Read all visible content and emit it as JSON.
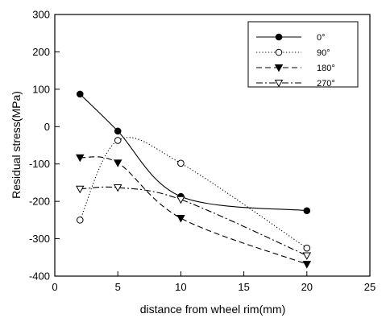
{
  "chart_data": {
    "type": "line",
    "title": "",
    "xlabel": "distance from wheel rim(mm)",
    "ylabel": "Residual stress(MPa)",
    "xlim": [
      0,
      25
    ],
    "ylim": [
      -400,
      300
    ],
    "xticks": [
      0,
      5,
      10,
      15,
      20,
      25
    ],
    "yticks": [
      -400,
      -300,
      -200,
      -100,
      0,
      100,
      200,
      300
    ],
    "xtick_labels": [
      "0",
      "5",
      "10",
      "15",
      "20",
      "25"
    ],
    "ytick_labels": [
      "-400",
      "-300",
      "-200",
      "-100",
      "0",
      "100",
      "200",
      "300"
    ],
    "grid": false,
    "legend_position": "top-right",
    "x": [
      2,
      5,
      10,
      20
    ],
    "series": [
      {
        "name": "0°",
        "values": [
          87,
          -12,
          -187,
          -225
        ],
        "marker": "filled-circle",
        "line_style": "solid",
        "smooth": true
      },
      {
        "name": "90°",
        "values": [
          -250,
          -37,
          -98,
          -325
        ],
        "marker": "open-circle",
        "line_style": "dotted",
        "smooth": true
      },
      {
        "name": "180°",
        "values": [
          -83,
          -97,
          -245,
          -368
        ],
        "marker": "filled-triangle-down",
        "line_style": "dashed",
        "smooth": true
      },
      {
        "name": "270°",
        "values": [
          -167,
          -163,
          -195,
          -345
        ],
        "marker": "open-triangle-down",
        "line_style": "dash-dot",
        "smooth": true
      }
    ]
  }
}
